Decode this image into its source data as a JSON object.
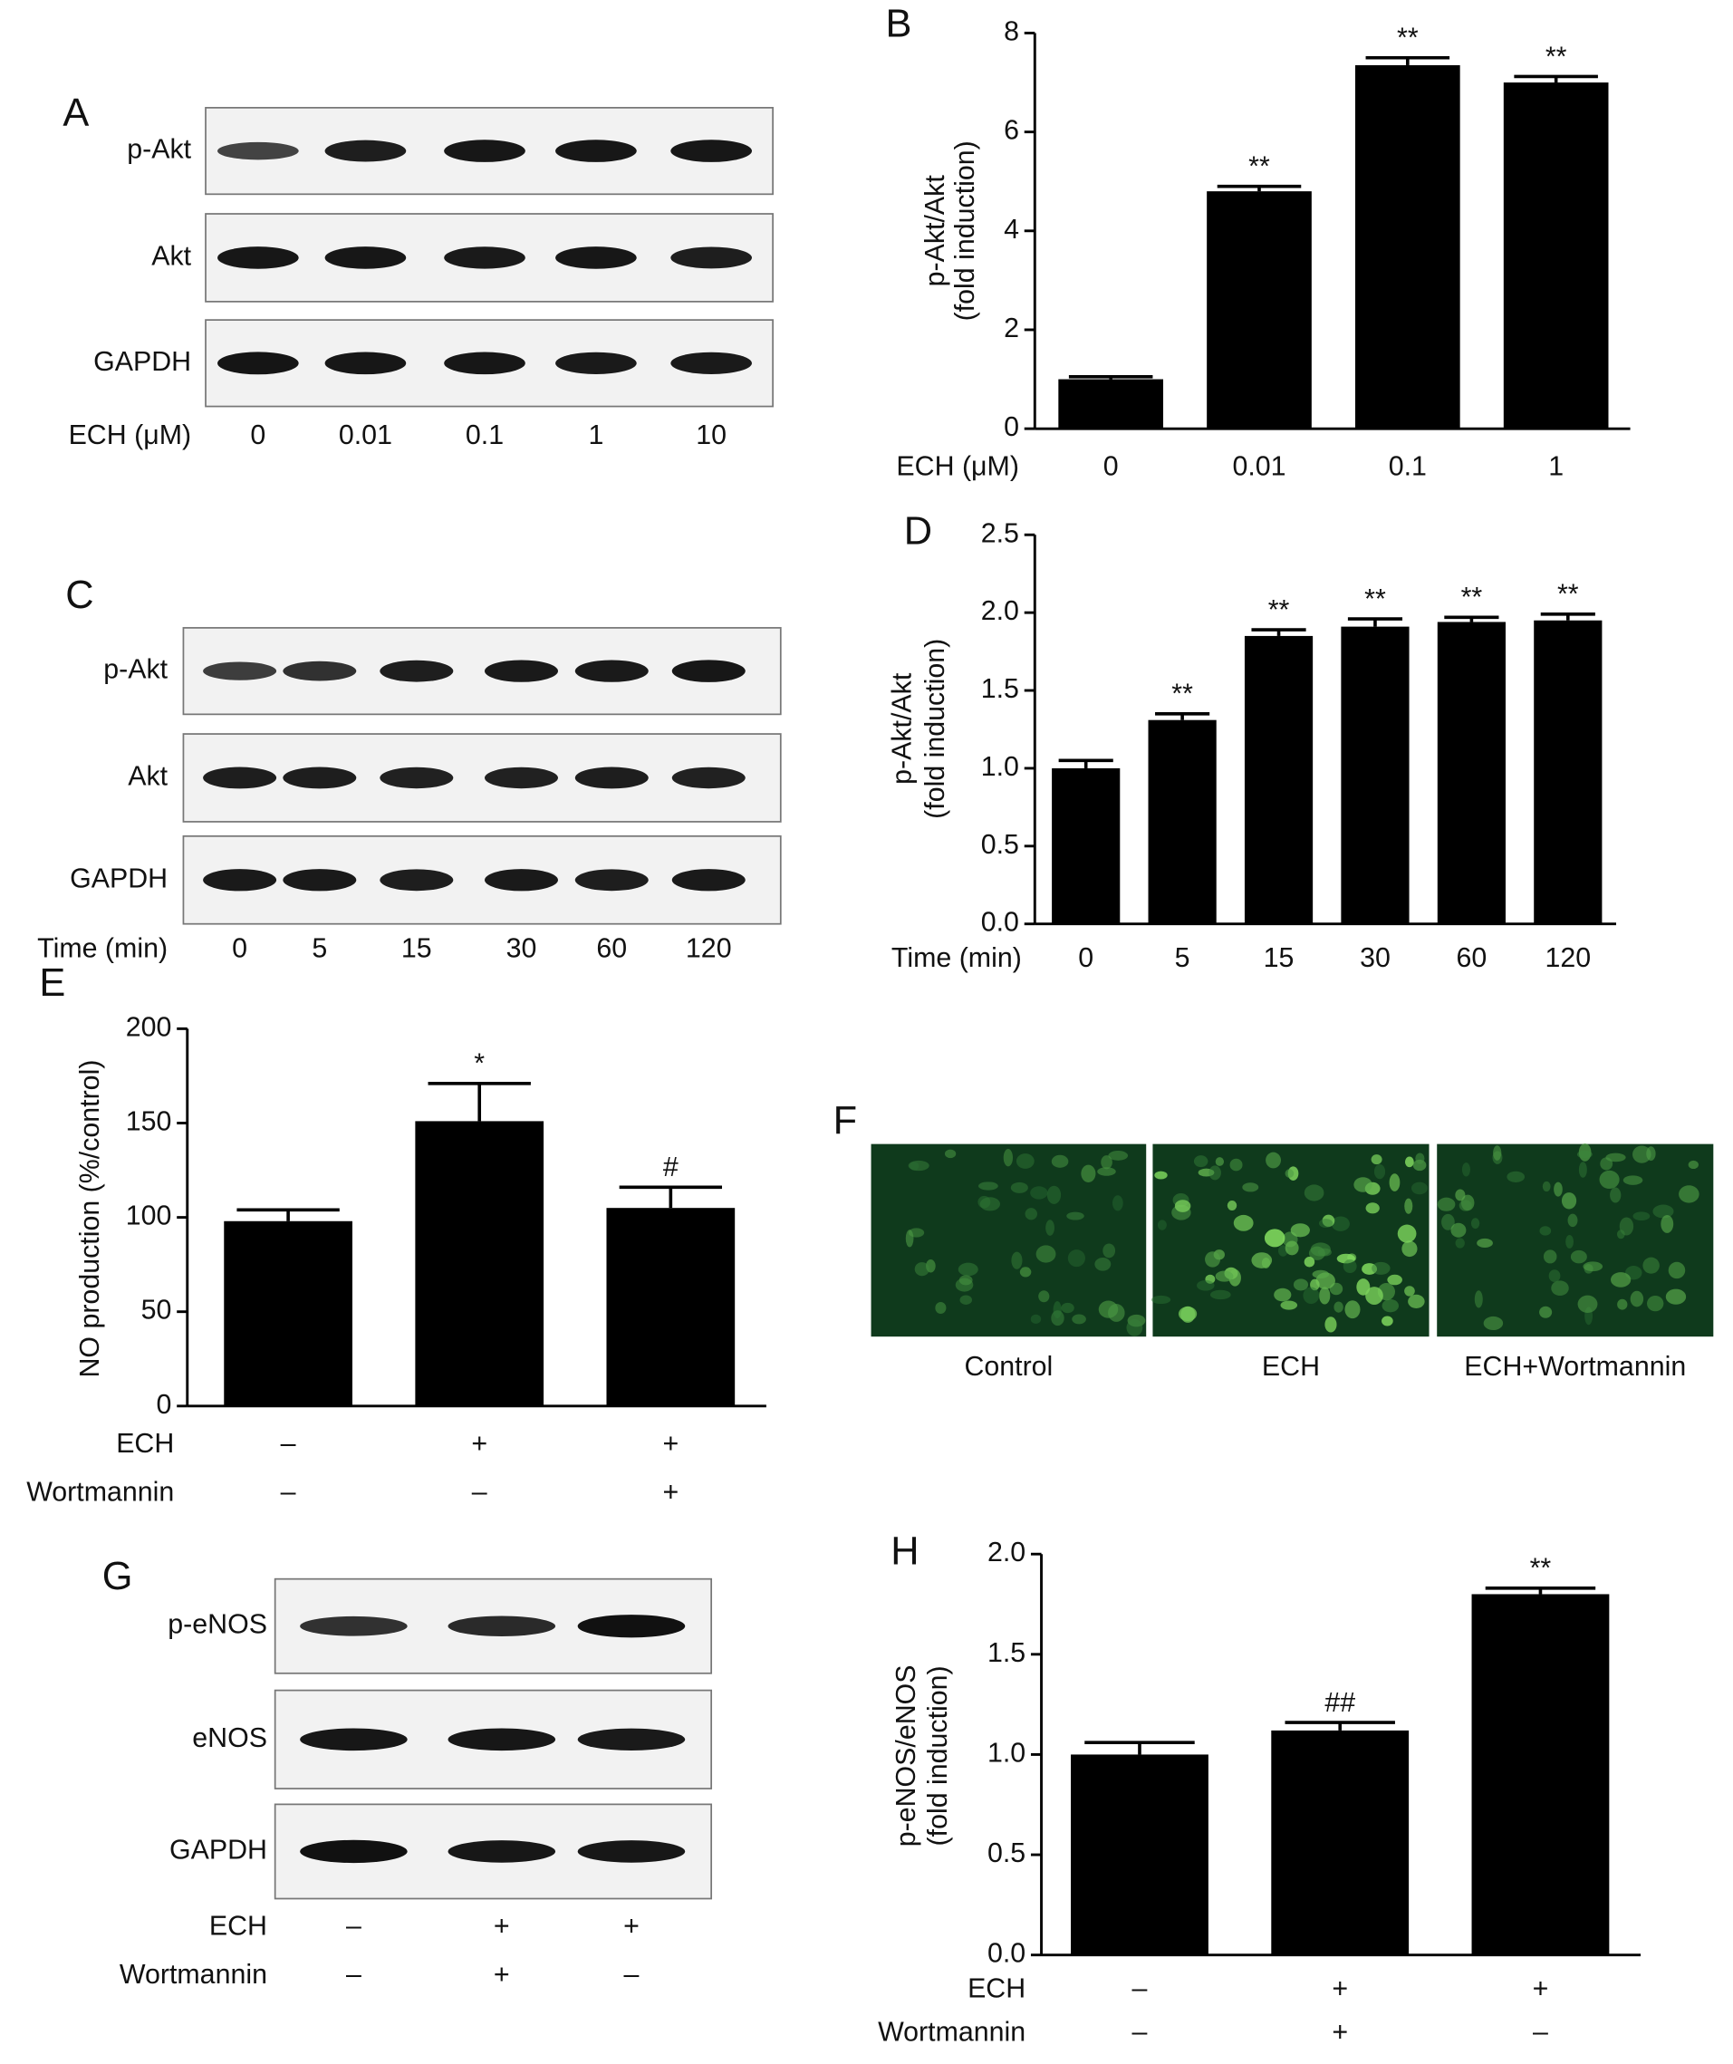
{
  "chart_data": [
    {
      "type": "bar",
      "panel": "B",
      "color": "#000000",
      "ylabel_lines": [
        "p-Akt/Akt",
        "(fold induction)"
      ],
      "xlabel": "ECH (μM)",
      "categories": [
        "0",
        "0.01",
        "0.1",
        "1"
      ],
      "values": [
        1.0,
        4.8,
        7.35,
        7.0
      ],
      "errors": [
        0.05,
        0.1,
        0.15,
        0.12
      ],
      "annotations": [
        null,
        "**",
        "**",
        "**"
      ],
      "ylim": [
        0,
        8
      ],
      "yticks": [
        0,
        2,
        4,
        6,
        8
      ]
    },
    {
      "type": "bar",
      "panel": "D",
      "color": "#000000",
      "ylabel_lines": [
        "p-Akt/Akt",
        "(fold induction)"
      ],
      "xlabel": "Time (min)",
      "categories": [
        "0",
        "5",
        "15",
        "30",
        "60",
        "120"
      ],
      "values": [
        1.0,
        1.31,
        1.85,
        1.91,
        1.94,
        1.95
      ],
      "errors": [
        0.05,
        0.04,
        0.04,
        0.05,
        0.03,
        0.04
      ],
      "annotations": [
        null,
        "**",
        "**",
        "**",
        "**",
        "**"
      ],
      "ylim": [
        0,
        2.5
      ],
      "yticks": [
        {
          "value": 0,
          "label": "0.0"
        },
        {
          "value": 0.5,
          "label": "0.5"
        },
        {
          "value": 1,
          "label": "1.0"
        },
        {
          "value": 1.5,
          "label": "1.5"
        },
        {
          "value": 2,
          "label": "2.0"
        },
        {
          "value": 2.5,
          "label": "2.5"
        }
      ]
    },
    {
      "type": "bar",
      "panel": "E",
      "color": "#000000",
      "ylabel_lines": [
        "NO production (%/control)"
      ],
      "factors": [
        {
          "name": "ECH",
          "levels": [
            "–",
            "+",
            "+"
          ]
        },
        {
          "name": "Wortmannin",
          "levels": [
            "–",
            "–",
            "+"
          ]
        }
      ],
      "values": [
        98,
        151,
        105
      ],
      "errors": [
        6,
        20,
        11
      ],
      "annotations": [
        null,
        "*",
        "#"
      ],
      "ylim": [
        0,
        200
      ],
      "yticks": [
        0,
        50,
        100,
        150,
        200
      ]
    },
    {
      "type": "bar",
      "panel": "H",
      "color": "#000000",
      "ylabel_lines": [
        "p-eNOS/eNOS",
        "(fold induction)"
      ],
      "factors": [
        {
          "name": "ECH",
          "levels": [
            "–",
            "+",
            "+"
          ]
        },
        {
          "name": "Wortmannin",
          "levels": [
            "–",
            "+",
            "–"
          ]
        }
      ],
      "values": [
        1.0,
        1.12,
        1.8
      ],
      "errors": [
        0.06,
        0.04,
        0.03
      ],
      "annotations": [
        null,
        "##",
        "**"
      ],
      "ylim": [
        0,
        2
      ],
      "yticks": [
        {
          "value": 0,
          "label": "0.0"
        },
        {
          "value": 0.5,
          "label": "0.5"
        },
        {
          "value": 1,
          "label": "1.0"
        },
        {
          "value": 1.5,
          "label": "1.5"
        },
        {
          "value": 2,
          "label": "2.0"
        }
      ]
    }
  ],
  "blots": [
    {
      "panel": "A",
      "rows": [
        "p-Akt",
        "Akt",
        "GAPDH"
      ],
      "factors": [
        {
          "name": "ECH (μM)",
          "levels": [
            "0",
            "0.01",
            "0.1",
            "1",
            "10"
          ]
        }
      ]
    },
    {
      "panel": "C",
      "rows": [
        "p-Akt",
        "Akt",
        "GAPDH"
      ],
      "factors": [
        {
          "name": "Time (min)",
          "levels": [
            "0",
            "5",
            "15",
            "30",
            "60",
            "120"
          ]
        }
      ]
    },
    {
      "panel": "G",
      "rows": [
        "p-eNOS",
        "eNOS",
        "GAPDH"
      ],
      "factors": [
        {
          "name": "ECH",
          "levels": [
            "–",
            "+",
            "+"
          ]
        },
        {
          "name": "Wortmannin",
          "levels": [
            "–",
            "+",
            "–"
          ]
        }
      ]
    }
  ],
  "images": {
    "panel": "F",
    "labels": [
      "Control",
      "ECH",
      "ECH+Wortmannin"
    ]
  }
}
